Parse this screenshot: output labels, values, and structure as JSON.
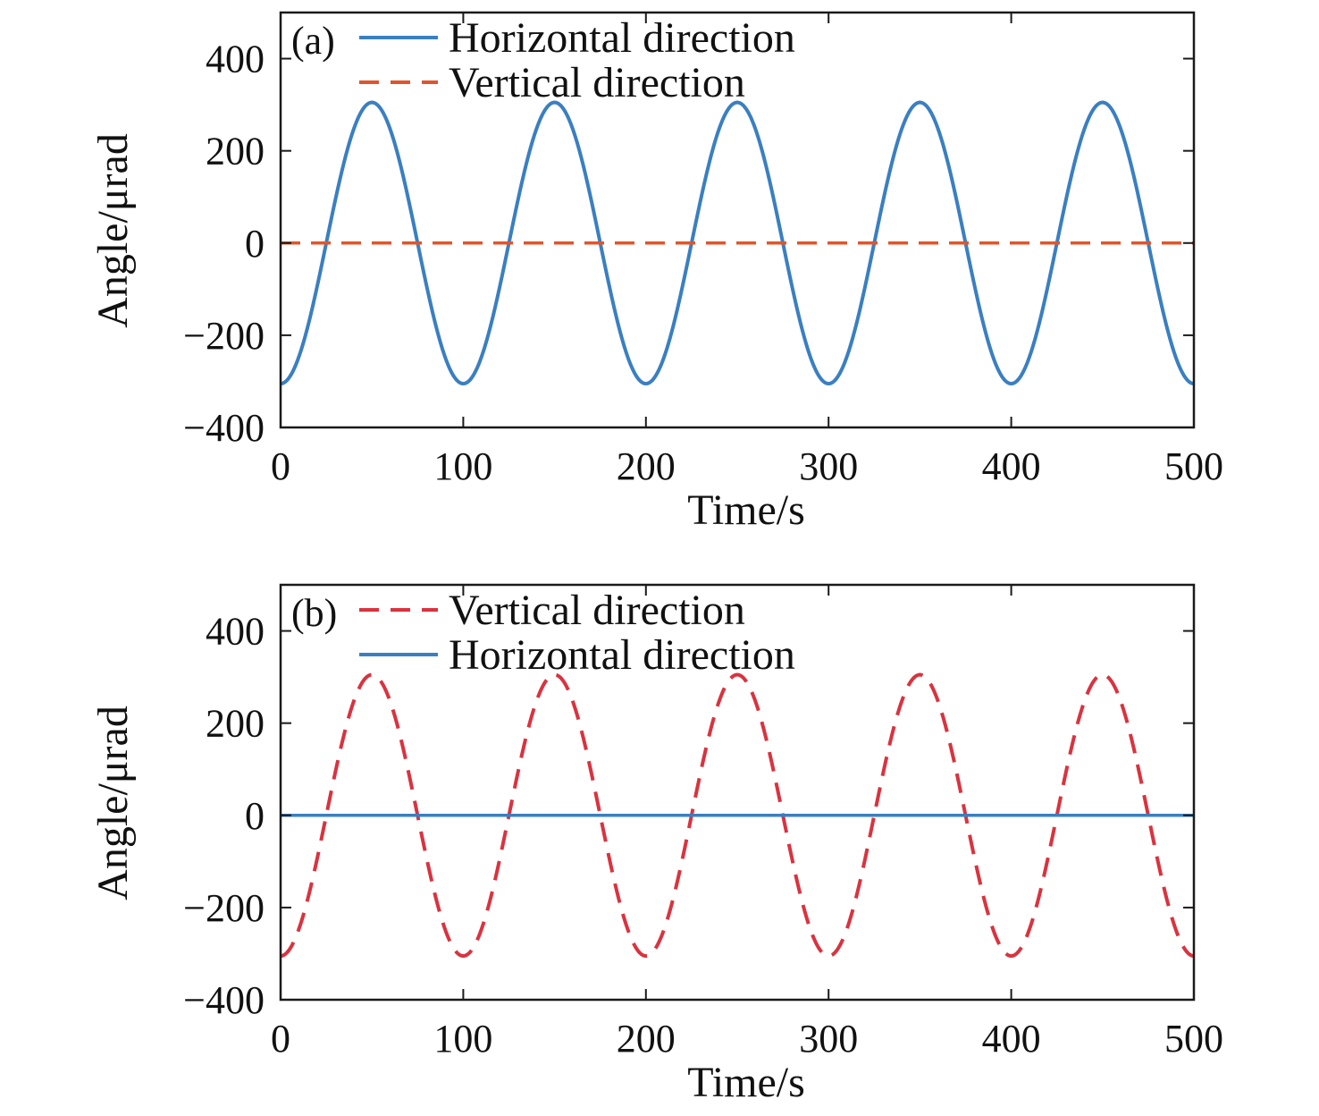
{
  "chart_data": [
    {
      "type": "line",
      "panel_label": "(a)",
      "xlabel": "Time/s",
      "ylabel": "Angle/μrad",
      "xlim": [
        0,
        500
      ],
      "ylim": [
        -400,
        500
      ],
      "x_ticks": [
        "0",
        "100",
        "200",
        "300",
        "400",
        "500"
      ],
      "y_ticks": [
        "400",
        "200",
        "0",
        "−200",
        "−400"
      ],
      "legend_position": "top-left",
      "series": [
        {
          "name": "Horizontal direction",
          "style": "solid",
          "color": "#3a7fc1",
          "function": "sine",
          "amplitude": 305,
          "period": 100,
          "offset": 0,
          "x": [
            0,
            25,
            50,
            75,
            100,
            125,
            150,
            175,
            200,
            225,
            250,
            275,
            300,
            325,
            350,
            375,
            400,
            425,
            450,
            475,
            500
          ],
          "values": [
            -305,
            0,
            305,
            0,
            -305,
            0,
            305,
            0,
            -305,
            0,
            305,
            0,
            -305,
            0,
            305,
            0,
            -305,
            0,
            305,
            0,
            -305
          ]
        },
        {
          "name": "Vertical direction",
          "style": "dashed",
          "color": "#e0552b",
          "function": "constant",
          "x": [
            0,
            500
          ],
          "values": [
            0,
            0
          ]
        }
      ]
    },
    {
      "type": "line",
      "panel_label": "(b)",
      "xlabel": "Time/s",
      "ylabel": "Angle/μrad",
      "xlim": [
        0,
        500
      ],
      "ylim": [
        -400,
        500
      ],
      "x_ticks": [
        "0",
        "100",
        "200",
        "300",
        "400",
        "500"
      ],
      "y_ticks": [
        "400",
        "200",
        "0",
        "−200",
        "−400"
      ],
      "legend_position": "top-left",
      "series": [
        {
          "name": "Vertical direction",
          "style": "dashed",
          "color": "#d9333f",
          "function": "sine",
          "amplitude": 305,
          "period": 100,
          "offset": 0,
          "x": [
            0,
            25,
            50,
            75,
            100,
            125,
            150,
            175,
            200,
            225,
            250,
            275,
            300,
            325,
            350,
            375,
            400,
            425,
            450,
            475,
            500
          ],
          "values": [
            -305,
            0,
            305,
            0,
            -305,
            0,
            305,
            0,
            -305,
            0,
            305,
            0,
            -305,
            0,
            305,
            0,
            -305,
            0,
            305,
            0,
            -305
          ]
        },
        {
          "name": "Horizontal direction",
          "style": "solid",
          "color": "#3a7fc1",
          "function": "constant",
          "x": [
            0,
            500
          ],
          "values": [
            0,
            0
          ]
        }
      ]
    }
  ]
}
